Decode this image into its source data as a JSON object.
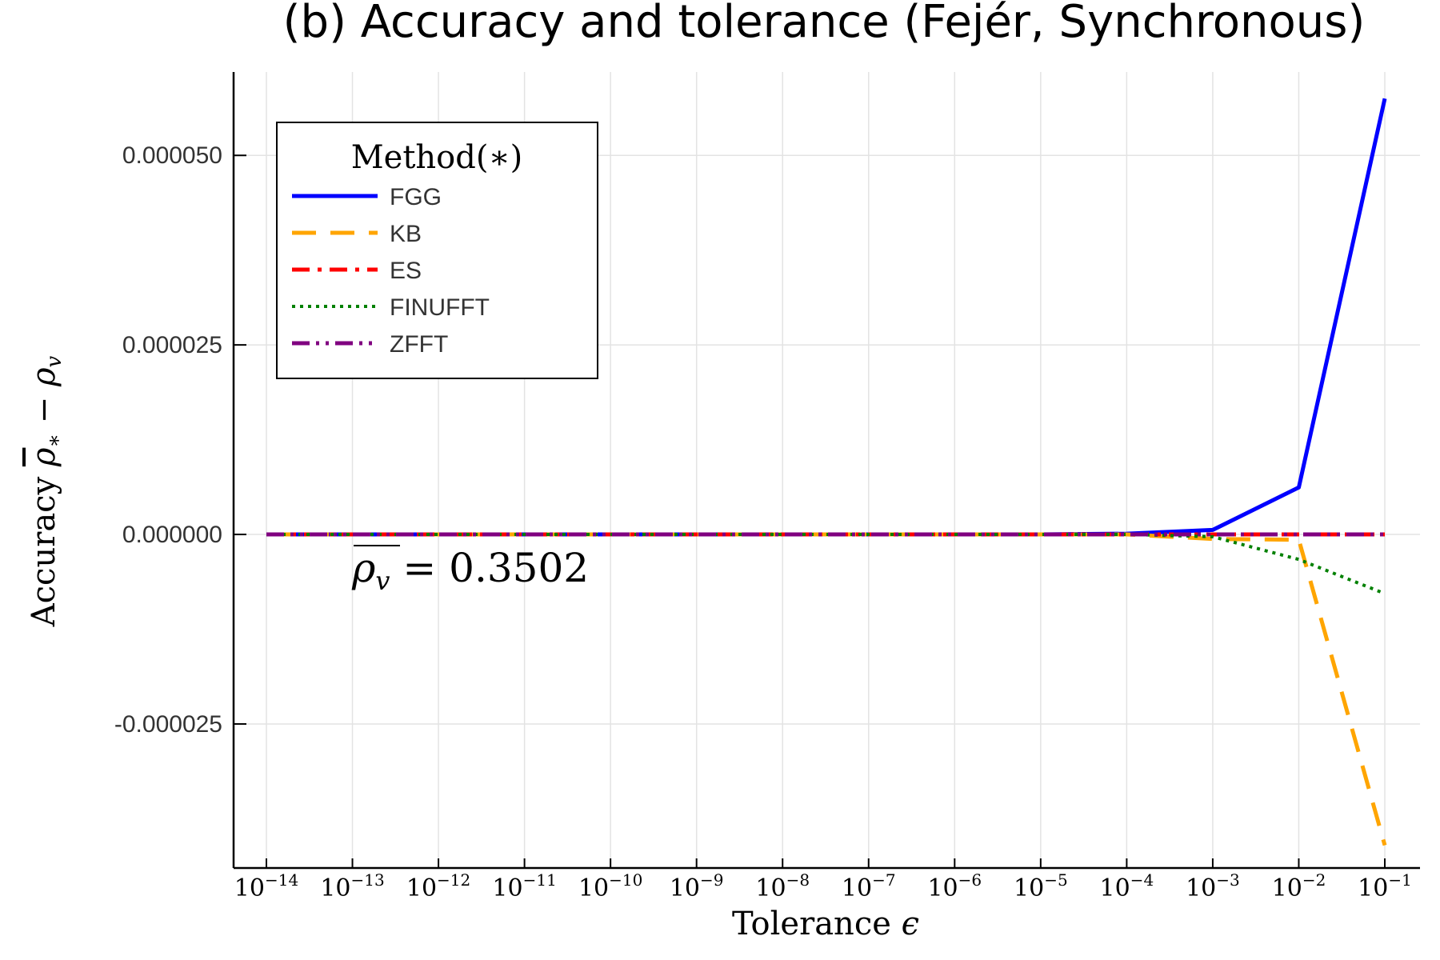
{
  "chart_data": {
    "type": "line",
    "title": "(b) Accuracy and tolerance (Fejér, Synchronous)",
    "xlabel": "Tolerance ϵ",
    "ylabel": "Accuracy ρ̄* − ρv",
    "x_scale": "log",
    "xlim": [
      1e-14,
      0.1
    ],
    "ylim": [
      -4.4e-05,
      6.1e-05
    ],
    "grid": true,
    "x_ticks": [
      {
        "value": 1e-14,
        "base": "10",
        "exp": "−14"
      },
      {
        "value": 1e-13,
        "base": "10",
        "exp": "−13"
      },
      {
        "value": 1e-12,
        "base": "10",
        "exp": "−12"
      },
      {
        "value": 1e-11,
        "base": "10",
        "exp": "−11"
      },
      {
        "value": 1e-10,
        "base": "10",
        "exp": "−10"
      },
      {
        "value": 1e-09,
        "base": "10",
        "exp": "−9"
      },
      {
        "value": 1e-08,
        "base": "10",
        "exp": "−8"
      },
      {
        "value": 1e-07,
        "base": "10",
        "exp": "−7"
      },
      {
        "value": 1e-06,
        "base": "10",
        "exp": "−6"
      },
      {
        "value": 1e-05,
        "base": "10",
        "exp": "−5"
      },
      {
        "value": 0.0001,
        "base": "10",
        "exp": "−4"
      },
      {
        "value": 0.001,
        "base": "10",
        "exp": "−3"
      },
      {
        "value": 0.01,
        "base": "10",
        "exp": "−2"
      },
      {
        "value": 0.1,
        "base": "10",
        "exp": "−1"
      }
    ],
    "y_ticks": [
      {
        "value": 5e-05,
        "label": "0.000050"
      },
      {
        "value": 2.5e-05,
        "label": "0.000025"
      },
      {
        "value": 0.0,
        "label": "0.000000"
      },
      {
        "value": -2.5e-05,
        "label": "-0.000025"
      }
    ],
    "legend": {
      "title": "Method(∗)",
      "position": "top-left"
    },
    "annotation": "ρv = 0.3502",
    "x": [
      1e-14,
      1e-13,
      1e-12,
      1e-11,
      1e-10,
      1e-09,
      1e-08,
      1e-07,
      1e-06,
      1e-05,
      0.0001,
      0.001,
      0.01,
      0.1
    ],
    "series": [
      {
        "name": "FGG",
        "color": "#0000ff",
        "style": "solid",
        "values": [
          0,
          0,
          0,
          0,
          0,
          0,
          0,
          0,
          0,
          0,
          1e-07,
          6e-07,
          6.2e-06,
          5.75e-05
        ]
      },
      {
        "name": "KB",
        "color": "#ffa500",
        "style": "dash",
        "values": [
          0,
          0,
          0,
          0,
          0,
          0,
          0,
          0,
          0,
          0,
          0,
          -6e-07,
          -7e-07,
          -4.1e-05
        ]
      },
      {
        "name": "ES",
        "color": "#ff0000",
        "style": "dashdot",
        "values": [
          0,
          0,
          0,
          0,
          0,
          0,
          0,
          0,
          0,
          0,
          0,
          0,
          0,
          0
        ]
      },
      {
        "name": "FINUFFT",
        "color": "#008000",
        "style": "dot",
        "values": [
          0,
          0,
          0,
          0,
          0,
          0,
          0,
          0,
          0,
          0,
          0,
          -3e-07,
          -3.3e-06,
          -7.8e-06
        ]
      },
      {
        "name": "ZFFT",
        "color": "#800080",
        "style": "dashdotdot",
        "values": [
          0,
          0,
          0,
          0,
          0,
          0,
          0,
          0,
          0,
          0,
          0,
          0,
          0,
          0
        ]
      }
    ]
  }
}
